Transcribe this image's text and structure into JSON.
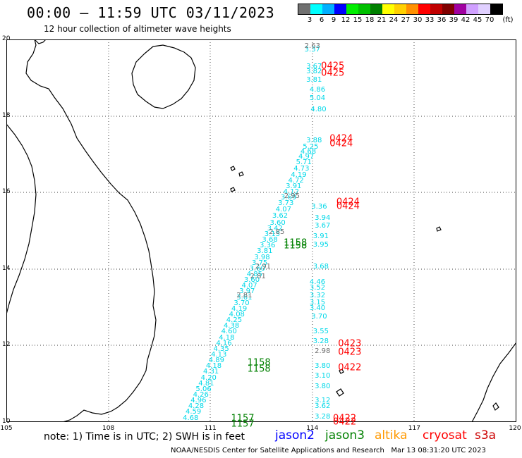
{
  "header": {
    "title": "00:00 – 11:59 UTC 03/11/2023",
    "subtitle": "12 hour collection of altimeter wave heights"
  },
  "legend": {
    "colors": [
      "#707070",
      "#00ffff",
      "#00b0ff",
      "#0000ff",
      "#00ee00",
      "#00c000",
      "#008000",
      "#ffff00",
      "#ffd000",
      "#ff9000",
      "#ff0000",
      "#c00000",
      "#800000",
      "#a000a0",
      "#d0a0ff",
      "#e0d0ff",
      "#000000"
    ],
    "labels": [
      "3",
      "6",
      "9",
      "12",
      "15",
      "18",
      "21",
      "24",
      "27",
      "30",
      "33",
      "36",
      "39",
      "42",
      "45",
      "70",
      "(ft)"
    ]
  },
  "axes": {
    "lat": [
      "20",
      "18",
      "16",
      "14",
      "12",
      "10"
    ],
    "lon": [
      "105",
      "108",
      "111",
      "114",
      "117",
      "120"
    ]
  },
  "map_extent": {
    "lon": [
      105,
      120
    ],
    "lat": [
      10,
      20
    ]
  },
  "swh_points_cyan": [
    {
      "lon": 114.05,
      "lat": 17.35,
      "v": "3.88"
    },
    {
      "lon": 113.95,
      "lat": 17.18,
      "v": "5.25"
    },
    {
      "lon": 113.88,
      "lat": 17.05,
      "v": "4.68"
    },
    {
      "lon": 113.82,
      "lat": 16.93,
      "v": "4.97"
    },
    {
      "lon": 113.75,
      "lat": 16.78,
      "v": "5.71"
    },
    {
      "lon": 113.68,
      "lat": 16.62,
      "v": "4.73"
    },
    {
      "lon": 113.6,
      "lat": 16.45,
      "v": "4.19"
    },
    {
      "lon": 113.52,
      "lat": 16.3,
      "v": "4.72"
    },
    {
      "lon": 113.45,
      "lat": 16.15,
      "v": "3.91"
    },
    {
      "lon": 113.38,
      "lat": 16.0,
      "v": "4.12"
    },
    {
      "lon": 113.3,
      "lat": 15.85,
      "v": "3.69"
    },
    {
      "lon": 113.22,
      "lat": 15.7,
      "v": "3.73"
    },
    {
      "lon": 113.15,
      "lat": 15.55,
      "v": "4.07"
    },
    {
      "lon": 113.05,
      "lat": 15.38,
      "v": "3.62"
    },
    {
      "lon": 112.98,
      "lat": 15.2,
      "v": "3.60"
    },
    {
      "lon": 112.9,
      "lat": 15.05,
      "v": "3.42"
    },
    {
      "lon": 112.82,
      "lat": 14.9,
      "v": "3.15"
    },
    {
      "lon": 112.75,
      "lat": 14.75,
      "v": "3.68"
    },
    {
      "lon": 112.68,
      "lat": 14.6,
      "v": "3.36"
    },
    {
      "lon": 112.6,
      "lat": 14.45,
      "v": "3.81"
    },
    {
      "lon": 112.52,
      "lat": 14.3,
      "v": "3.98"
    },
    {
      "lon": 112.45,
      "lat": 14.15,
      "v": "3.75"
    },
    {
      "lon": 112.38,
      "lat": 14.0,
      "v": "3.60"
    },
    {
      "lon": 112.3,
      "lat": 13.85,
      "v": "4.85"
    },
    {
      "lon": 112.22,
      "lat": 13.7,
      "v": "3.60"
    },
    {
      "lon": 112.15,
      "lat": 13.55,
      "v": "4.07"
    },
    {
      "lon": 112.08,
      "lat": 13.4,
      "v": "3.97"
    },
    {
      "lon": 112.0,
      "lat": 13.25,
      "v": "3.61"
    },
    {
      "lon": 111.92,
      "lat": 13.1,
      "v": "3.70"
    },
    {
      "lon": 111.85,
      "lat": 12.95,
      "v": "4.19"
    },
    {
      "lon": 111.78,
      "lat": 12.8,
      "v": "4.08"
    },
    {
      "lon": 111.7,
      "lat": 12.65,
      "v": "4.25"
    },
    {
      "lon": 111.62,
      "lat": 12.5,
      "v": "4.38"
    },
    {
      "lon": 111.55,
      "lat": 12.35,
      "v": "4.60"
    },
    {
      "lon": 111.48,
      "lat": 12.2,
      "v": "4.18"
    },
    {
      "lon": 111.4,
      "lat": 12.05,
      "v": "4.16"
    },
    {
      "lon": 111.32,
      "lat": 11.9,
      "v": "4.35"
    },
    {
      "lon": 111.25,
      "lat": 11.75,
      "v": "4.13"
    },
    {
      "lon": 111.18,
      "lat": 11.6,
      "v": "4.89"
    },
    {
      "lon": 111.1,
      "lat": 11.45,
      "v": "4.18"
    },
    {
      "lon": 111.02,
      "lat": 11.3,
      "v": "4.31"
    },
    {
      "lon": 110.95,
      "lat": 11.15,
      "v": "4.20"
    },
    {
      "lon": 110.88,
      "lat": 11.0,
      "v": "4.81"
    },
    {
      "lon": 110.8,
      "lat": 10.85,
      "v": "5.06"
    },
    {
      "lon": 110.72,
      "lat": 10.7,
      "v": "4.26"
    },
    {
      "lon": 110.65,
      "lat": 10.55,
      "v": "4.96"
    },
    {
      "lon": 110.58,
      "lat": 10.4,
      "v": "4.28"
    },
    {
      "lon": 110.5,
      "lat": 10.25,
      "v": "4.59"
    },
    {
      "lon": 110.42,
      "lat": 10.1,
      "v": "4.68"
    },
    {
      "lon": 114.0,
      "lat": 19.72,
      "v": "3.37"
    },
    {
      "lon": 114.05,
      "lat": 19.28,
      "v": "3.67"
    },
    {
      "lon": 114.05,
      "lat": 19.15,
      "v": "3.82"
    },
    {
      "lon": 114.05,
      "lat": 18.93,
      "v": "3.81"
    },
    {
      "lon": 114.15,
      "lat": 18.67,
      "v": "4.86"
    },
    {
      "lon": 114.15,
      "lat": 18.45,
      "v": "5.04"
    },
    {
      "lon": 114.18,
      "lat": 18.15,
      "v": "4.80"
    },
    {
      "lon": 114.2,
      "lat": 15.62,
      "v": "3.36"
    },
    {
      "lon": 114.3,
      "lat": 15.32,
      "v": "3.94"
    },
    {
      "lon": 114.3,
      "lat": 15.12,
      "v": "3.67"
    },
    {
      "lon": 114.25,
      "lat": 14.85,
      "v": "3.91"
    },
    {
      "lon": 114.25,
      "lat": 14.62,
      "v": "3.95"
    },
    {
      "lon": 114.25,
      "lat": 14.05,
      "v": "3.68"
    },
    {
      "lon": 114.15,
      "lat": 13.65,
      "v": "4.46"
    },
    {
      "lon": 114.15,
      "lat": 13.5,
      "v": "3.52"
    },
    {
      "lon": 114.15,
      "lat": 13.3,
      "v": "3.32"
    },
    {
      "lon": 114.15,
      "lat": 13.12,
      "v": "3.15"
    },
    {
      "lon": 114.15,
      "lat": 12.97,
      "v": "3.40"
    },
    {
      "lon": 114.2,
      "lat": 12.75,
      "v": "3.70"
    },
    {
      "lon": 114.25,
      "lat": 12.35,
      "v": "3.55"
    },
    {
      "lon": 114.25,
      "lat": 12.1,
      "v": "3.28"
    },
    {
      "lon": 114.3,
      "lat": 11.45,
      "v": "3.80"
    },
    {
      "lon": 114.3,
      "lat": 11.2,
      "v": "3.10"
    },
    {
      "lon": 114.3,
      "lat": 10.92,
      "v": "3.80"
    },
    {
      "lon": 114.3,
      "lat": 10.55,
      "v": "3.12"
    },
    {
      "lon": 114.3,
      "lat": 10.4,
      "v": "3.62"
    },
    {
      "lon": 114.3,
      "lat": 10.12,
      "v": "3.28"
    }
  ],
  "swh_points_gray": [
    {
      "lon": 114.0,
      "lat": 19.82,
      "v": "2.63"
    },
    {
      "lon": 113.4,
      "lat": 15.9,
      "v": "2.95"
    },
    {
      "lon": 112.95,
      "lat": 14.95,
      "v": "2.85"
    },
    {
      "lon": 112.55,
      "lat": 14.05,
      "v": "2.91"
    },
    {
      "lon": 112.4,
      "lat": 13.8,
      "v": "2.81"
    },
    {
      "lon": 112.0,
      "lat": 13.3,
      "v": "2.81"
    },
    {
      "lon": 114.3,
      "lat": 11.85,
      "v": "2.98"
    }
  ],
  "time_labels": [
    {
      "lon": 114.6,
      "lat": 19.3,
      "t": "0425",
      "c": "#ff0000"
    },
    {
      "lon": 114.6,
      "lat": 19.12,
      "t": "0425",
      "c": "#ff0000"
    },
    {
      "lon": 114.85,
      "lat": 17.4,
      "t": "0424",
      "c": "#ff0000"
    },
    {
      "lon": 114.85,
      "lat": 17.28,
      "t": "0424",
      "c": "#ff0000"
    },
    {
      "lon": 115.05,
      "lat": 15.75,
      "t": "0424",
      "c": "#ff0000"
    },
    {
      "lon": 115.05,
      "lat": 15.63,
      "t": "0424",
      "c": "#ff0000"
    },
    {
      "lon": 115.1,
      "lat": 12.05,
      "t": "0423",
      "c": "#ff0000"
    },
    {
      "lon": 115.1,
      "lat": 11.82,
      "t": "0423",
      "c": "#ff0000"
    },
    {
      "lon": 115.1,
      "lat": 11.42,
      "t": "0422",
      "c": "#ff0000"
    },
    {
      "lon": 114.95,
      "lat": 10.1,
      "t": "0422",
      "c": "#ff0000"
    },
    {
      "lon": 114.95,
      "lat": 10.0,
      "t": "0422",
      "c": "#ff0000"
    },
    {
      "lon": 113.5,
      "lat": 14.67,
      "t": "1158",
      "c": "#008000"
    },
    {
      "lon": 113.5,
      "lat": 14.6,
      "t": "1158",
      "c": "#008000"
    },
    {
      "lon": 112.43,
      "lat": 11.55,
      "t": "1158",
      "c": "#008000"
    },
    {
      "lon": 112.43,
      "lat": 11.38,
      "t": "1158",
      "c": "#008000"
    },
    {
      "lon": 111.95,
      "lat": 10.1,
      "t": "1157",
      "c": "#008000"
    },
    {
      "lon": 111.95,
      "lat": 9.95,
      "t": "1157",
      "c": "#008000"
    }
  ],
  "footer": {
    "note": "note: 1) Time is in UTC; 2) SWH is in feet",
    "satellites": [
      {
        "name": "jason2",
        "color": "#0000ff"
      },
      {
        "name": "jason3",
        "color": "#008000"
      },
      {
        "name": "altika",
        "color": "#ff9900"
      },
      {
        "name": "cryosat",
        "color": "#ff0000"
      },
      {
        "name": "s3a",
        "color": "#cc0000"
      }
    ],
    "credit": "NOAA/NESDIS Center for Satellite Applications and Research   Mar 13 08:31:20 UTC 2023"
  }
}
